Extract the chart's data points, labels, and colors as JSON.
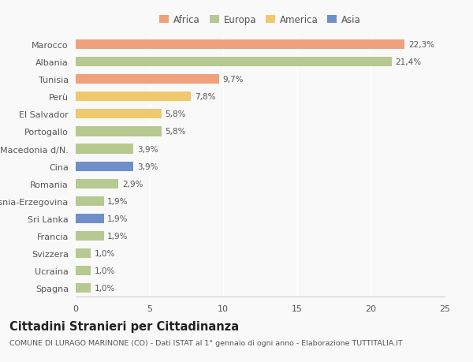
{
  "categories": [
    "Spagna",
    "Ucraina",
    "Svizzera",
    "Francia",
    "Sri Lanka",
    "Bosnia-Erzegovina",
    "Romania",
    "Cina",
    "Macedonia d/N.",
    "Portogallo",
    "El Salvador",
    "Perù",
    "Tunisia",
    "Albania",
    "Marocco"
  ],
  "values": [
    1.0,
    1.0,
    1.0,
    1.9,
    1.9,
    1.9,
    2.9,
    3.9,
    3.9,
    5.8,
    5.8,
    7.8,
    9.7,
    21.4,
    22.3
  ],
  "labels": [
    "1,0%",
    "1,0%",
    "1,0%",
    "1,9%",
    "1,9%",
    "1,9%",
    "2,9%",
    "3,9%",
    "3,9%",
    "5,8%",
    "5,8%",
    "7,8%",
    "9,7%",
    "21,4%",
    "22,3%"
  ],
  "colors": [
    "#b5c990",
    "#b5c990",
    "#b5c990",
    "#b5c990",
    "#6e8fc9",
    "#b5c990",
    "#b5c990",
    "#6e8fc9",
    "#b5c990",
    "#b5c990",
    "#f0c96e",
    "#f0c96e",
    "#f0a07a",
    "#b5c990",
    "#f0a07a"
  ],
  "legend": {
    "Africa": "#f0a07a",
    "Europa": "#b5c990",
    "America": "#f0c96e",
    "Asia": "#6e8fc9"
  },
  "xlim": [
    0,
    25
  ],
  "xticks": [
    0,
    5,
    10,
    15,
    20,
    25
  ],
  "title": "Cittadini Stranieri per Cittadinanza",
  "subtitle": "COMUNE DI LURAGO MARINONE (CO) - Dati ISTAT al 1° gennaio di ogni anno - Elaborazione TUTTITALIA.IT",
  "background_color": "#f9f9f9",
  "bar_height": 0.55,
  "label_fontsize": 7.5,
  "ytick_fontsize": 8.0,
  "xtick_fontsize": 8.0,
  "title_fontsize": 10.5,
  "subtitle_fontsize": 6.8,
  "legend_fontsize": 8.5
}
